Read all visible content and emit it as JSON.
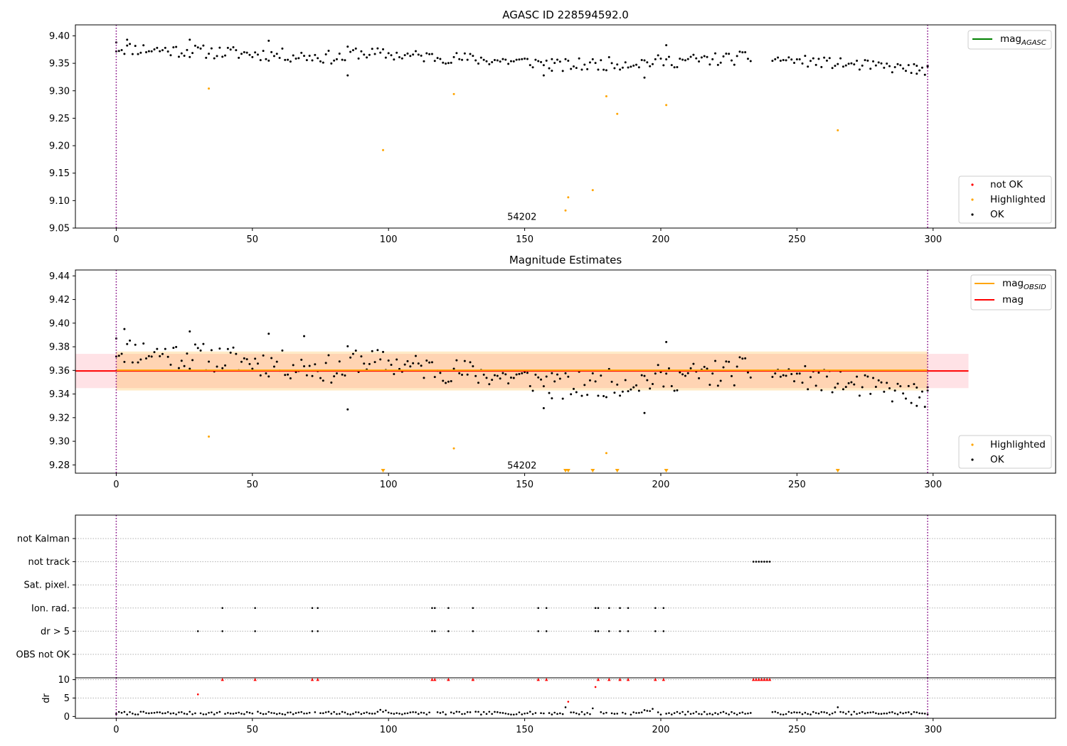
{
  "chart_data": [
    {
      "type": "scatter",
      "title": "AGASC ID 228594592.0",
      "xlim": [
        -15,
        345
      ],
      "ylim": [
        9.05,
        9.42
      ],
      "xticks": [
        0,
        50,
        100,
        150,
        200,
        250,
        300
      ],
      "yticks": [
        "9.05",
        "9.10",
        "9.15",
        "9.20",
        "9.25",
        "9.30",
        "9.35",
        "9.40"
      ],
      "vlines": [
        0,
        298
      ],
      "annotation": {
        "text": "54202",
        "x": 149,
        "y": 9.06
      },
      "legend_upper": [
        {
          "label": "mag",
          "sub": "AGASC",
          "color": "#008000",
          "kind": "line"
        }
      ],
      "legend_lower": [
        {
          "label": "not OK",
          "color": "#ff0000",
          "kind": "dot"
        },
        {
          "label": "Highlighted",
          "color": "#ffa500",
          "kind": "dot"
        },
        {
          "label": "OK",
          "color": "#000000",
          "kind": "dot"
        }
      ],
      "ok_segments": [
        {
          "x0": 0,
          "x1": 84,
          "y0": 9.378,
          "y1": 9.36,
          "amp": 0.012
        },
        {
          "x0": 85,
          "x1": 160,
          "y0": 9.37,
          "y1": 9.35,
          "amp": 0.011
        },
        {
          "x0": 160,
          "x1": 233,
          "y0": 9.345,
          "y1": 9.36,
          "amp": 0.012
        },
        {
          "x0": 241,
          "x1": 298,
          "y0": 9.358,
          "y1": 9.338,
          "amp": 0.01
        }
      ],
      "ok_extra": [
        [
          0,
          9.388
        ],
        [
          4,
          9.393
        ],
        [
          27,
          9.393
        ],
        [
          56,
          9.391
        ],
        [
          85,
          9.328
        ],
        [
          157,
          9.328
        ],
        [
          194,
          9.324
        ],
        [
          202,
          9.383
        ],
        [
          294,
          9.331
        ],
        [
          298,
          9.344
        ]
      ],
      "highlighted": [
        [
          34,
          9.304
        ],
        [
          98,
          9.192
        ],
        [
          124,
          9.294
        ],
        [
          165,
          9.082
        ],
        [
          166,
          9.106
        ],
        [
          175,
          9.119
        ],
        [
          180,
          9.29
        ],
        [
          184,
          9.258
        ],
        [
          202,
          9.274
        ],
        [
          265,
          9.228
        ]
      ]
    },
    {
      "type": "scatter",
      "title": "Magnitude Estimates",
      "xlim": [
        -15,
        345
      ],
      "ylim": [
        9.273,
        9.445
      ],
      "xticks": [
        0,
        50,
        100,
        150,
        200,
        250,
        300
      ],
      "yticks": [
        "9.28",
        "9.30",
        "9.32",
        "9.34",
        "9.36",
        "9.38",
        "9.40",
        "9.42",
        "9.44"
      ],
      "vlines": [
        0,
        298
      ],
      "annotation": {
        "text": "54202",
        "x": 149,
        "y": 9.277
      },
      "legend_upper": [
        {
          "label": "mag",
          "sub": "OBSID",
          "color": "#ffa500",
          "kind": "line"
        },
        {
          "label": "mag",
          "sub": "",
          "color": "#ff0000",
          "kind": "line"
        }
      ],
      "legend_lower": [
        {
          "label": "Highlighted",
          "color": "#ffa500",
          "kind": "dot"
        },
        {
          "label": "OK",
          "color": "#000000",
          "kind": "dot"
        }
      ],
      "mag_line": 9.3595,
      "mag_band": [
        9.345,
        9.374
      ],
      "obsid_band": [
        9.343,
        9.376
      ],
      "band_x": [
        -15,
        313
      ],
      "obsid_x": [
        0,
        298
      ],
      "ok_segments": [
        {
          "x0": 0,
          "x1": 84,
          "y0": 9.378,
          "y1": 9.36,
          "amp": 0.012
        },
        {
          "x0": 85,
          "x1": 160,
          "y0": 9.37,
          "y1": 9.35,
          "amp": 0.011
        },
        {
          "x0": 160,
          "x1": 233,
          "y0": 9.345,
          "y1": 9.36,
          "amp": 0.012
        },
        {
          "x0": 241,
          "x1": 298,
          "y0": 9.358,
          "y1": 9.338,
          "amp": 0.01
        }
      ],
      "ok_extra": [
        [
          0,
          9.387
        ],
        [
          3,
          9.395
        ],
        [
          27,
          9.393
        ],
        [
          56,
          9.391
        ],
        [
          69,
          9.389
        ],
        [
          85,
          9.327
        ],
        [
          157,
          9.328
        ],
        [
          194,
          9.324
        ],
        [
          202,
          9.384
        ],
        [
          294,
          9.33
        ],
        [
          298,
          9.343
        ]
      ],
      "highlighted": [
        [
          34,
          9.304
        ],
        [
          124,
          9.294
        ],
        [
          180,
          9.29
        ]
      ],
      "highlighted_below": [
        98,
        165,
        166,
        175,
        184,
        202,
        265
      ]
    },
    {
      "type": "scatter",
      "xlim": [
        -15,
        345
      ],
      "vlines": [
        0,
        298
      ],
      "flag_labels": [
        "not Kalman",
        "not track",
        "Sat. pixel.",
        "Ion. rad.",
        "dr > 5",
        "OBS not OK"
      ],
      "flags": {
        "not track": [
          234,
          235,
          236,
          237,
          238,
          239,
          240
        ],
        "Ion. rad.": [
          39,
          51,
          72,
          74,
          116,
          117,
          122,
          131,
          155,
          158,
          176,
          177,
          181,
          185,
          188,
          198,
          201
        ],
        "dr > 5": [
          30,
          39,
          51,
          72,
          74,
          116,
          117,
          122,
          131,
          155,
          158,
          176,
          177,
          181,
          185,
          188,
          198,
          201
        ]
      },
      "dr": {
        "ylabel": "dr",
        "ylim": [
          -0.5,
          10.5
        ],
        "yticks": [
          "0",
          "5",
          "10"
        ],
        "clip_value": 10,
        "base": 0.5,
        "gaps": [
          [
            233.5,
            240.5
          ]
        ],
        "red_high": [
          39,
          51,
          72,
          74,
          116,
          117,
          122,
          131,
          155,
          158,
          177,
          181,
          185,
          188,
          198,
          201,
          234,
          235,
          236,
          237,
          238,
          239,
          240
        ],
        "red_low": [
          [
            30,
            6.0
          ],
          [
            166,
            4.0
          ],
          [
            176,
            8.0
          ]
        ],
        "black_high": [
          [
            165,
            2.5
          ],
          [
            175,
            2.2
          ],
          [
            265,
            2.5
          ]
        ]
      }
    }
  ]
}
